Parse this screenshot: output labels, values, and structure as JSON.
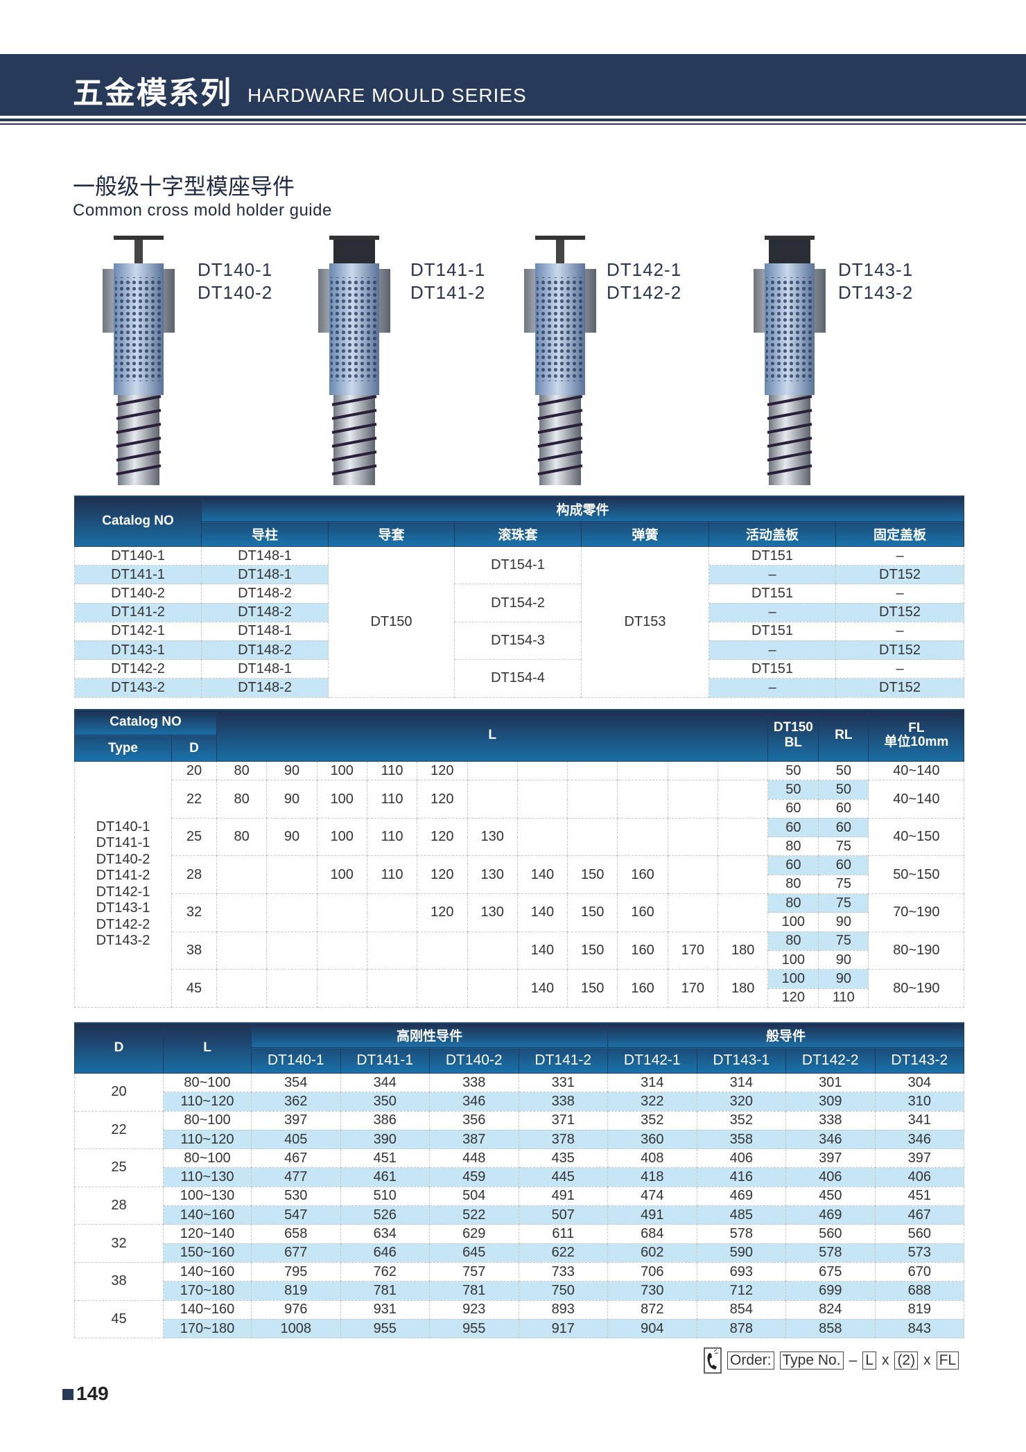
{
  "header": {
    "title_cn": "五金模系列",
    "title_en": "HARDWARE MOULD SERIES"
  },
  "section": {
    "title_cn": "一般级十字型模座导件",
    "title_en": "Common cross mold holder guide"
  },
  "products": [
    {
      "labels": [
        "DT140-1",
        "DT140-2"
      ],
      "head": "light"
    },
    {
      "labels": [
        "DT141-1",
        "DT141-2"
      ],
      "head": "dark"
    },
    {
      "labels": [
        "DT142-1",
        "DT142-2"
      ],
      "head": "light"
    },
    {
      "labels": [
        "DT143-1",
        "DT143-2"
      ],
      "head": "dark"
    }
  ],
  "table1": {
    "catalog_header": "Catalog NO",
    "group_header": "构成零件",
    "columns": [
      "导柱",
      "导套",
      "滚珠套",
      "弹簧",
      "活动盖板",
      "固定盖板"
    ],
    "catalog": [
      "DT140-1",
      "DT141-1",
      "DT140-2",
      "DT141-2",
      "DT142-1",
      "DT143-1",
      "DT142-2",
      "DT143-2"
    ],
    "post": [
      "DT148-1",
      "DT148-1",
      "DT148-2",
      "DT148-2",
      "DT148-1",
      "DT148-2",
      "DT148-1",
      "DT148-2"
    ],
    "sleeve": "DT150",
    "balls": [
      "DT154-1",
      "DT154-2",
      "DT154-3",
      "DT154-4"
    ],
    "spring": "DT153",
    "moving": [
      "DT151",
      "–",
      "DT151",
      "–",
      "DT151",
      "–",
      "DT151",
      "–"
    ],
    "fixed": [
      "–",
      "DT152",
      "–",
      "DT152",
      "–",
      "DT152",
      "–",
      "DT152"
    ]
  },
  "table2": {
    "catalog_header": "Catalog NO",
    "type_header": "Type",
    "d_header": "D",
    "l_header": "L",
    "bl_header": [
      "DT150",
      "BL"
    ],
    "rl_header": "RL",
    "fl_header": [
      "FL",
      "单位10mm"
    ],
    "types": [
      "DT140-1",
      "DT141-1",
      "DT140-2",
      "DT141-2",
      "DT142-1",
      "DT143-1",
      "DT142-2",
      "DT143-2"
    ],
    "rows": [
      {
        "d": "20",
        "l": [
          "80",
          "90",
          "100",
          "110",
          "120",
          "",
          "",
          "",
          "",
          "",
          ""
        ],
        "bl": [
          "50"
        ],
        "rl": [
          "50"
        ],
        "fl": "40~140"
      },
      {
        "d": "22",
        "l": [
          "80",
          "90",
          "100",
          "110",
          "120",
          "",
          "",
          "",
          "",
          "",
          ""
        ],
        "bl": [
          "50",
          "60"
        ],
        "rl": [
          "50",
          "60"
        ],
        "fl": "40~140"
      },
      {
        "d": "25",
        "l": [
          "80",
          "90",
          "100",
          "110",
          "120",
          "130",
          "",
          "",
          "",
          "",
          ""
        ],
        "bl": [
          "60",
          "80"
        ],
        "rl": [
          "60",
          "75"
        ],
        "fl": "40~150"
      },
      {
        "d": "28",
        "l": [
          "",
          "",
          "100",
          "110",
          "120",
          "130",
          "140",
          "150",
          "160",
          "",
          ""
        ],
        "bl": [
          "60",
          "80"
        ],
        "rl": [
          "60",
          "75"
        ],
        "fl": "50~150"
      },
      {
        "d": "32",
        "l": [
          "",
          "",
          "",
          "",
          "120",
          "130",
          "140",
          "150",
          "160",
          "",
          ""
        ],
        "bl": [
          "80",
          "100"
        ],
        "rl": [
          "75",
          "90"
        ],
        "fl": "70~190"
      },
      {
        "d": "38",
        "l": [
          "",
          "",
          "",
          "",
          "",
          "",
          "140",
          "150",
          "160",
          "170",
          "180"
        ],
        "bl": [
          "80",
          "100"
        ],
        "rl": [
          "75",
          "90"
        ],
        "fl": "80~190"
      },
      {
        "d": "45",
        "l": [
          "",
          "",
          "",
          "",
          "",
          "",
          "140",
          "150",
          "160",
          "170",
          "180"
        ],
        "bl": [
          "100",
          "120"
        ],
        "rl": [
          "90",
          "110"
        ],
        "fl": "80~190"
      }
    ]
  },
  "table3": {
    "d_header": "D",
    "l_header": "L",
    "group1": "高刚性导件",
    "group2": "般导件",
    "columns": [
      "DT140-1",
      "DT141-1",
      "DT140-2",
      "DT141-2",
      "DT142-1",
      "DT143-1",
      "DT142-2",
      "DT143-2"
    ],
    "rows": [
      {
        "d": "20",
        "sub": [
          {
            "l": "80~100",
            "v": [
              "354",
              "344",
              "338",
              "331",
              "314",
              "314",
              "301",
              "304"
            ]
          },
          {
            "l": "110~120",
            "v": [
              "362",
              "350",
              "346",
              "338",
              "322",
              "320",
              "309",
              "310"
            ]
          }
        ]
      },
      {
        "d": "22",
        "sub": [
          {
            "l": "80~100",
            "v": [
              "397",
              "386",
              "356",
              "371",
              "352",
              "352",
              "338",
              "341"
            ]
          },
          {
            "l": "110~120",
            "v": [
              "405",
              "390",
              "387",
              "378",
              "360",
              "358",
              "346",
              "346"
            ]
          }
        ]
      },
      {
        "d": "25",
        "sub": [
          {
            "l": "80~100",
            "v": [
              "467",
              "451",
              "448",
              "435",
              "408",
              "406",
              "397",
              "397"
            ]
          },
          {
            "l": "110~130",
            "v": [
              "477",
              "461",
              "459",
              "445",
              "418",
              "416",
              "406",
              "406"
            ]
          }
        ]
      },
      {
        "d": "28",
        "sub": [
          {
            "l": "100~130",
            "v": [
              "530",
              "510",
              "504",
              "491",
              "474",
              "469",
              "450",
              "451"
            ]
          },
          {
            "l": "140~160",
            "v": [
              "547",
              "526",
              "522",
              "507",
              "491",
              "485",
              "469",
              "467"
            ]
          }
        ]
      },
      {
        "d": "32",
        "sub": [
          {
            "l": "120~140",
            "v": [
              "658",
              "634",
              "629",
              "611",
              "684",
              "578",
              "560",
              "560"
            ]
          },
          {
            "l": "150~160",
            "v": [
              "677",
              "646",
              "645",
              "622",
              "602",
              "590",
              "578",
              "573"
            ]
          }
        ]
      },
      {
        "d": "38",
        "sub": [
          {
            "l": "140~160",
            "v": [
              "795",
              "762",
              "757",
              "733",
              "706",
              "693",
              "675",
              "670"
            ]
          },
          {
            "l": "170~180",
            "v": [
              "819",
              "781",
              "781",
              "750",
              "730",
              "712",
              "699",
              "688"
            ]
          }
        ]
      },
      {
        "d": "45",
        "sub": [
          {
            "l": "140~160",
            "v": [
              "976",
              "931",
              "923",
              "893",
              "872",
              "854",
              "824",
              "819"
            ]
          },
          {
            "l": "170~180",
            "v": [
              "1008",
              "955",
              "955",
              "917",
              "904",
              "878",
              "858",
              "843"
            ]
          }
        ]
      }
    ]
  },
  "order": {
    "icon": "phone-icon",
    "items": [
      "Order:",
      "Type No.",
      "–",
      "L",
      "x",
      "(2)",
      "x",
      "FL"
    ],
    "boxed": [
      true,
      true,
      false,
      true,
      false,
      true,
      false,
      true
    ]
  },
  "page_number": "149",
  "colors": {
    "header": "#283a5a",
    "highlight": "#c6e5f5"
  }
}
